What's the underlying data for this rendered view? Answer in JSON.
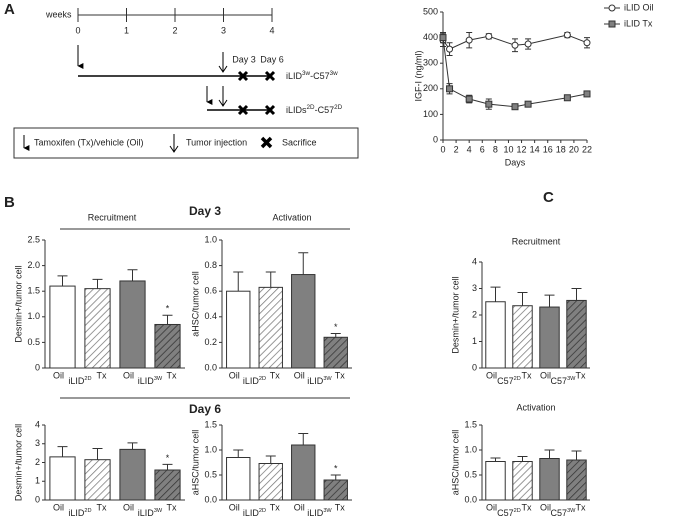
{
  "panel_labels": [
    "A",
    "B",
    "C"
  ],
  "timeline": {
    "axis_label": "weeks",
    "week_labels": [
      "0",
      "1",
      "2",
      "3",
      "4"
    ],
    "day_labels": [
      "Day 3",
      "Day 6"
    ],
    "rows": [
      [
        {
          "text": "iLID",
          "sup": "3w"
        },
        {
          "text": "-C57",
          "sup": "3w"
        }
      ],
      [
        {
          "text": "iLIDs",
          "sup": "2D"
        },
        {
          "text": "-C57",
          "sup": "2D"
        }
      ]
    ],
    "legend": [
      "Tamoxifen (Tx)/vehicle (Oil)",
      "Tumor injection",
      "Sacrifice"
    ]
  },
  "section_headers": [
    "Day 3",
    "Day 6"
  ],
  "chart_data": [
    {
      "type": "line",
      "xlabel": "Days",
      "ylabel": "IGF-I (ng/ml)",
      "legend": "right",
      "x": [
        0,
        1,
        4,
        7,
        11,
        13,
        19,
        22
      ],
      "xlim": [
        0,
        22
      ],
      "xticks": [
        0,
        2,
        4,
        6,
        8,
        10,
        12,
        14,
        16,
        18,
        20,
        22
      ],
      "ylim": [
        0,
        500
      ],
      "yticks": [
        0,
        100,
        200,
        300,
        400,
        500
      ],
      "series": [
        {
          "name": "iLID Oil",
          "color": "#ffffff",
          "marker": "circle",
          "values": [
            390,
            355,
            390,
            405,
            370,
            375,
            410,
            380
          ],
          "errors": [
            25,
            25,
            30,
            10,
            25,
            20,
            10,
            20
          ]
        },
        {
          "name": "iLID Tx",
          "color": "#808080",
          "marker": "square",
          "values": [
            400,
            200,
            160,
            140,
            130,
            140,
            165,
            180
          ],
          "errors": [
            20,
            20,
            15,
            20,
            10,
            10,
            10,
            10
          ]
        }
      ]
    },
    {
      "type": "bar",
      "title": "Recruitment",
      "ylabel": "Desmin+/tumor cell",
      "categories": [
        "Oil",
        "Tx",
        "Oil",
        "Tx"
      ],
      "groups": [
        {
          "text": "iLID",
          "sup": "2D"
        },
        {
          "text": "iLID",
          "sup": "3W"
        }
      ],
      "values": [
        1.6,
        1.55,
        1.7,
        0.85
      ],
      "errors": [
        0.2,
        0.18,
        0.22,
        0.18
      ],
      "colors": [
        "#ffffff",
        "#ffffff",
        "#808080",
        "#808080"
      ],
      "hatched": [
        false,
        true,
        false,
        true
      ],
      "markers": [
        null,
        null,
        null,
        "*"
      ],
      "ylim": [
        0,
        2.5
      ],
      "yticks": [
        0,
        0.5,
        {
          "value": 1,
          "label": "1.0"
        },
        1.5,
        {
          "value": 2,
          "label": "2.0"
        },
        2.5
      ]
    },
    {
      "type": "bar",
      "title": "Activation",
      "ylabel": "aHSC/tumor cell",
      "categories": [
        "Oil",
        "Tx",
        "Oil",
        "Tx"
      ],
      "groups": [
        {
          "text": "iLID",
          "sup": "2D"
        },
        {
          "text": "iLID",
          "sup": "3W"
        }
      ],
      "values": [
        0.6,
        0.63,
        0.73,
        0.24
      ],
      "errors": [
        0.15,
        0.12,
        0.17,
        0.03
      ],
      "colors": [
        "#ffffff",
        "#ffffff",
        "#808080",
        "#808080"
      ],
      "hatched": [
        false,
        true,
        false,
        true
      ],
      "markers": [
        null,
        null,
        null,
        "*"
      ],
      "ylim": [
        0,
        1
      ],
      "yticks": [
        {
          "value": 0,
          "label": "0.0"
        },
        0.2,
        0.4,
        0.6,
        0.8,
        {
          "value": 1,
          "label": "1.0"
        }
      ]
    },
    {
      "type": "bar",
      "ylabel": "Desmin+/tumor cell",
      "categories": [
        "Oil",
        "Tx",
        "Oil",
        "Tx"
      ],
      "groups": [
        {
          "text": "iLID",
          "sup": "2D"
        },
        {
          "text": "iLID",
          "sup": "3W"
        }
      ],
      "values": [
        2.3,
        2.15,
        2.7,
        1.6
      ],
      "errors": [
        0.55,
        0.6,
        0.35,
        0.3
      ],
      "colors": [
        "#ffffff",
        "#ffffff",
        "#808080",
        "#808080"
      ],
      "hatched": [
        false,
        true,
        false,
        true
      ],
      "markers": [
        null,
        null,
        null,
        "*"
      ],
      "ylim": [
        0,
        4
      ],
      "yticks": [
        0,
        1,
        2,
        3,
        4
      ]
    },
    {
      "type": "bar",
      "ylabel": "aHSC/tumor cell",
      "categories": [
        "Oil",
        "Tx",
        "Oil",
        "Tx"
      ],
      "groups": [
        {
          "text": "iLID",
          "sup": "2D"
        },
        {
          "text": "iLID",
          "sup": "3W"
        }
      ],
      "values": [
        0.85,
        0.73,
        1.1,
        0.4
      ],
      "errors": [
        0.15,
        0.15,
        0.23,
        0.1
      ],
      "colors": [
        "#ffffff",
        "#ffffff",
        "#808080",
        "#808080"
      ],
      "hatched": [
        false,
        true,
        false,
        true
      ],
      "markers": [
        null,
        null,
        null,
        "*"
      ],
      "ylim": [
        0,
        1.5
      ],
      "yticks": [
        {
          "value": 0,
          "label": "0.0"
        },
        0.5,
        {
          "value": 1,
          "label": "1.0"
        },
        1.5
      ]
    },
    {
      "type": "bar",
      "title": "Recruitment",
      "ylabel": "Desmin+/tumor cell",
      "categories": [
        "Oil",
        "Tx",
        "Oil",
        "Tx"
      ],
      "groups": [
        {
          "text": "C57",
          "sup": "2D"
        },
        {
          "text": "C57",
          "sup": "3W"
        }
      ],
      "values": [
        2.5,
        2.35,
        2.3,
        2.55
      ],
      "errors": [
        0.55,
        0.5,
        0.45,
        0.45
      ],
      "colors": [
        "#ffffff",
        "#ffffff",
        "#808080",
        "#808080"
      ],
      "hatched": [
        false,
        true,
        false,
        true
      ],
      "ylim": [
        0,
        4
      ],
      "yticks": [
        0,
        1,
        2,
        3,
        4
      ]
    },
    {
      "type": "bar",
      "title": "Activation",
      "ylabel": "aHSC/tumor cell",
      "categories": [
        "Oil",
        "Tx",
        "Oil",
        "Tx"
      ],
      "groups": [
        {
          "text": "C57",
          "sup": "2D"
        },
        {
          "text": "C57",
          "sup": "3W"
        }
      ],
      "values": [
        0.77,
        0.77,
        0.83,
        0.8
      ],
      "errors": [
        0.07,
        0.1,
        0.17,
        0.18
      ],
      "colors": [
        "#ffffff",
        "#ffffff",
        "#808080",
        "#808080"
      ],
      "hatched": [
        false,
        true,
        false,
        true
      ],
      "ylim": [
        0,
        1.5
      ],
      "yticks": [
        {
          "value": 0,
          "label": "0.0"
        },
        0.5,
        {
          "value": 1,
          "label": "1.0"
        },
        1.5
      ]
    }
  ]
}
